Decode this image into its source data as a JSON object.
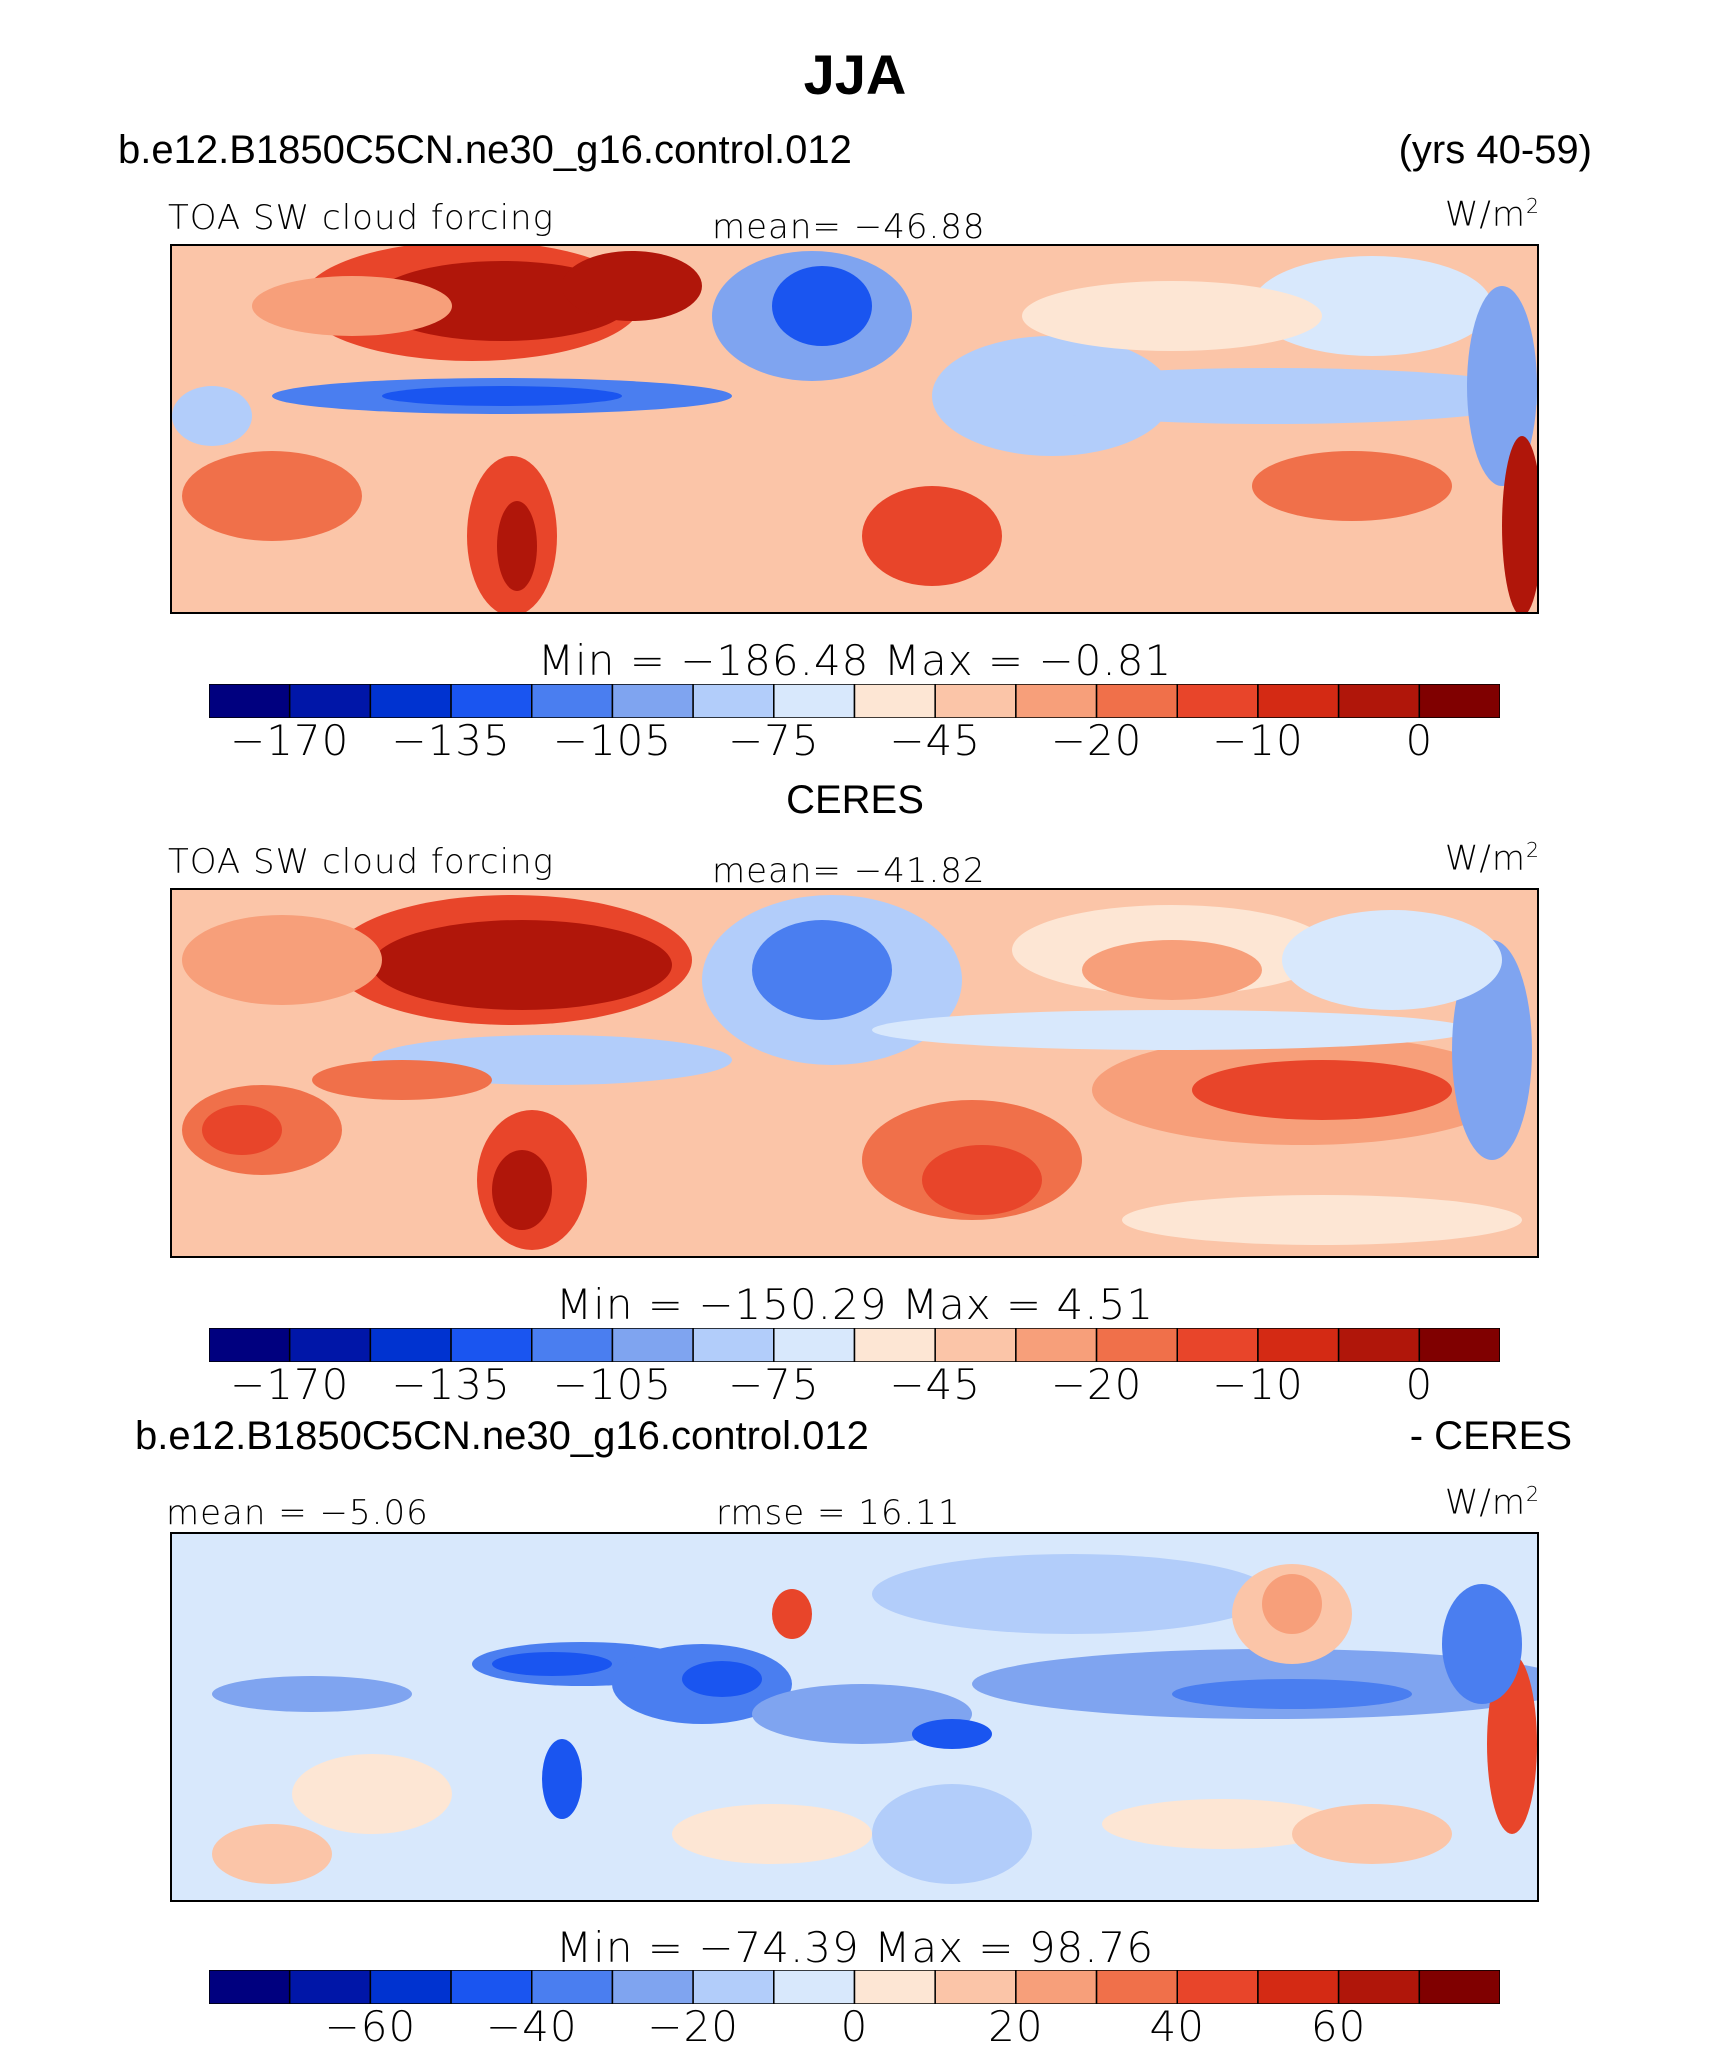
{
  "figure": {
    "title": "JJA",
    "case_name": "b.e12.B1850C5CN.ne30_g16.control.012",
    "years": "(yrs 40-59)",
    "obs_name": "CERES",
    "diff_case": "b.e12.B1850C5CN.ne30_g16.control.012",
    "diff_suffix": "- CERES",
    "units_base": "W/m",
    "units_exp": "2"
  },
  "panels": [
    {
      "variable": "TOA SW cloud forcing",
      "mean_text": "mean=  −46.88",
      "minmax_text": "Min  =  −186.48  Max  =    −0.81"
    },
    {
      "variable": "TOA SW cloud forcing",
      "mean_text": "mean=  −41.82",
      "minmax_text": "Min  =  −150.29  Max  =     4.51"
    },
    {
      "variable": "",
      "mean_text": "mean  =   −5.06",
      "rmse_text": "rmse  =   16.11",
      "minmax_text": "Min  =  −74.39  Max  =    98.76"
    }
  ],
  "colorbars": {
    "abs_colors": [
      "#00007f",
      "#0016a8",
      "#0033d0",
      "#1a55f0",
      "#4a7ef0",
      "#7fa4f0",
      "#b2cdfa",
      "#d8e8fc",
      "#fde6d4",
      "#fbc5a8",
      "#f79f7a",
      "#f0704a",
      "#e8452a",
      "#d42a14",
      "#b0160a",
      "#800000"
    ],
    "abs_ticks": [
      "−170",
      "−135",
      "−105",
      "−75",
      "−45",
      "−20",
      "−10",
      "0"
    ],
    "abs_tick_slots": [
      1,
      3,
      5,
      7,
      9,
      11,
      13,
      15
    ],
    "diff_colors": [
      "#00007f",
      "#0016a8",
      "#0033d0",
      "#1a55f0",
      "#4a7ef0",
      "#7fa4f0",
      "#b2cdfa",
      "#d8e8fc",
      "#fde6d4",
      "#fbc5a8",
      "#f79f7a",
      "#f0704a",
      "#e8452a",
      "#d42a14",
      "#b0160a",
      "#800000"
    ],
    "diff_ticks": [
      "−60",
      "−40",
      "−20",
      "0",
      "20",
      "40",
      "60"
    ],
    "diff_tick_slots": [
      2,
      4,
      6,
      8,
      10,
      12,
      14
    ]
  },
  "chart_data": [
    {
      "type": "heatmap",
      "title": "TOA SW cloud forcing",
      "subtitle": "b.e12.B1850C5CN.ne30_g16.control.012 (yrs 40-59)",
      "units": "W/m2",
      "mean": -46.88,
      "min": -186.48,
      "max": -0.81,
      "colorbar_levels": [
        -170,
        -135,
        -105,
        -75,
        -45,
        -20,
        -10,
        0
      ]
    },
    {
      "type": "heatmap",
      "title": "TOA SW cloud forcing",
      "subtitle": "CERES",
      "units": "W/m2",
      "mean": -41.82,
      "min": -150.29,
      "max": 4.51,
      "colorbar_levels": [
        -170,
        -135,
        -105,
        -75,
        -45,
        -20,
        -10,
        0
      ]
    },
    {
      "type": "heatmap",
      "subtitle": "b.e12.B1850C5CN.ne30_g16.control.012 - CERES",
      "units": "W/m2",
      "mean": -5.06,
      "rmse": 16.11,
      "min": -74.39,
      "max": 98.76,
      "colorbar_levels": [
        -60,
        -40,
        -20,
        0,
        20,
        40,
        60
      ]
    }
  ]
}
